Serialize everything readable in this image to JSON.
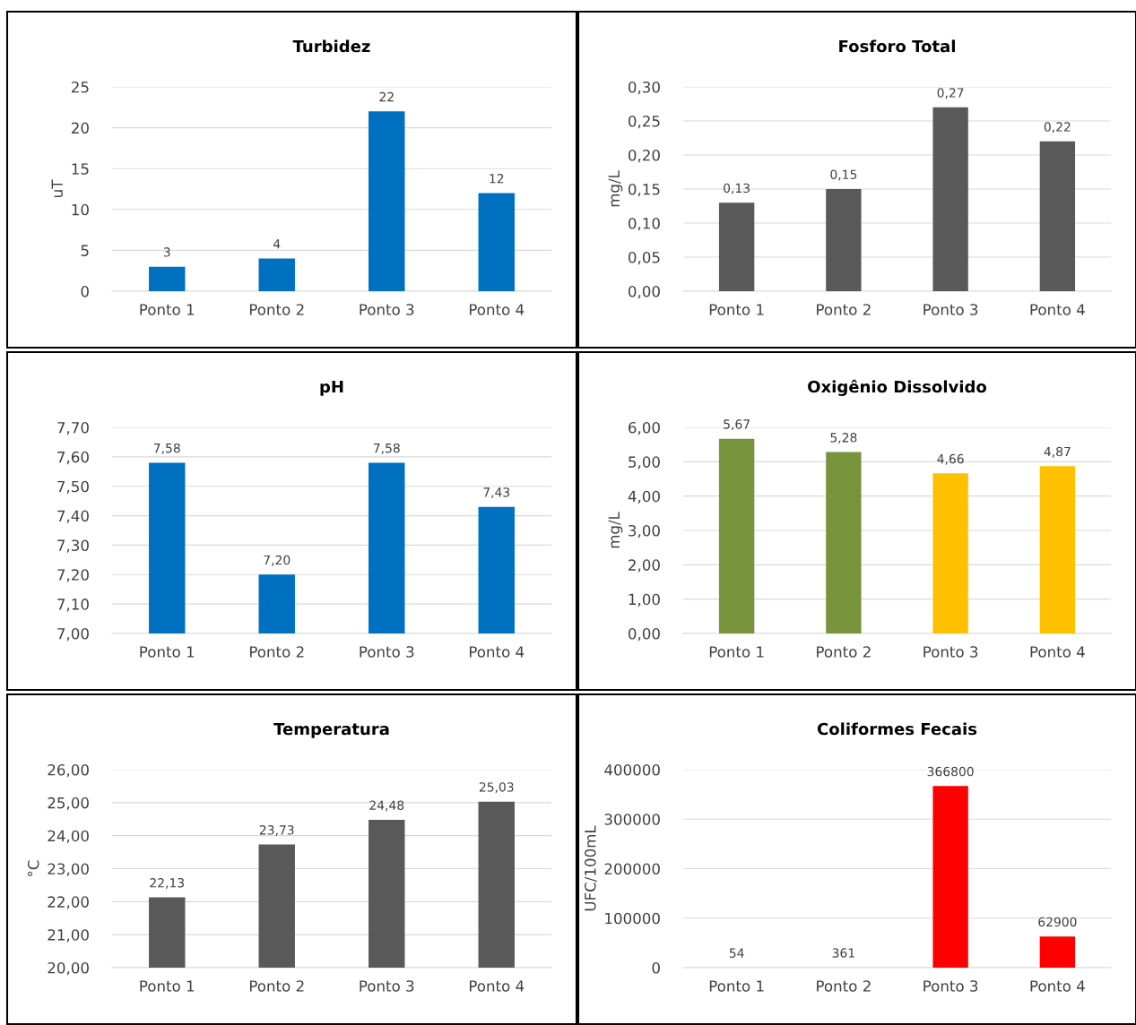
{
  "chart_data": [
    {
      "type": "bar",
      "title": "Turbidez",
      "ylabel": "uT",
      "categories": [
        "Ponto 1",
        "Ponto 2",
        "Ponto 3",
        "Ponto 4"
      ],
      "values": [
        3,
        4,
        22,
        12
      ],
      "color": "#0070c0",
      "ylim": [
        0,
        25
      ],
      "yticks": [
        0,
        5,
        10,
        15,
        20,
        25
      ],
      "grid": "y",
      "data_labels": true
    },
    {
      "type": "bar",
      "title": "Fosforo Total",
      "ylabel": "mg/L",
      "categories": [
        "Ponto 1",
        "Ponto 2",
        "Ponto 3",
        "Ponto 4"
      ],
      "values": [
        0.13,
        0.15,
        0.27,
        0.22
      ],
      "value_labels": [
        "0,13",
        "0,15",
        "0,27",
        "0,22"
      ],
      "color": "#595959",
      "ylim": [
        0,
        0.3
      ],
      "yticks": [
        {
          "value": 0,
          "label": "0,00"
        },
        {
          "value": 0.05,
          "label": "0,05"
        },
        {
          "value": 0.1,
          "label": "0,10"
        },
        {
          "value": 0.15,
          "label": "0,15"
        },
        {
          "value": 0.2,
          "label": "0,20"
        },
        {
          "value": 0.25,
          "label": "0,25"
        },
        {
          "value": 0.3,
          "label": "0,30"
        }
      ],
      "grid": "y"
    },
    {
      "type": "bar",
      "title": "pH",
      "categories": [
        "Ponto 1",
        "Ponto 2",
        "Ponto 3",
        "Ponto 4"
      ],
      "values": [
        7.58,
        7.2,
        7.58,
        7.43
      ],
      "value_labels": [
        "7,58",
        "7,20",
        "7,58",
        "7,43"
      ],
      "color": "#0070c0",
      "ylim": [
        7.0,
        7.7
      ],
      "yticks": [
        {
          "value": 7.0,
          "label": "7,00"
        },
        {
          "value": 7.1,
          "label": "7,10"
        },
        {
          "value": 7.2,
          "label": "7,20"
        },
        {
          "value": 7.3,
          "label": "7,30"
        },
        {
          "value": 7.4,
          "label": "7,40"
        },
        {
          "value": 7.5,
          "label": "7,50"
        },
        {
          "value": 7.6,
          "label": "7,60"
        },
        {
          "value": 7.7,
          "label": "7,70"
        }
      ],
      "grid": "y"
    },
    {
      "type": "bar",
      "title": "Oxigênio Dissolvido",
      "ylabel": "mg/L",
      "categories": [
        "Ponto 1",
        "Ponto 2",
        "Ponto 3",
        "Ponto 4"
      ],
      "values": [
        5.67,
        5.28,
        4.66,
        4.87
      ],
      "value_labels": [
        "5,67",
        "5,28",
        "4,66",
        "4,87"
      ],
      "colors": [
        "#77933c",
        "#77933c",
        "#ffc000",
        "#ffc000"
      ],
      "ylim": [
        0,
        6
      ],
      "yticks": [
        {
          "value": 0,
          "label": "0,00"
        },
        {
          "value": 1,
          "label": "1,00"
        },
        {
          "value": 2,
          "label": "2,00"
        },
        {
          "value": 3,
          "label": "3,00"
        },
        {
          "value": 4,
          "label": "4,00"
        },
        {
          "value": 5,
          "label": "5,00"
        },
        {
          "value": 6,
          "label": "6,00"
        }
      ],
      "grid": "y"
    },
    {
      "type": "bar",
      "title": "Temperatura",
      "ylabel": "°C",
      "categories": [
        "Ponto 1",
        "Ponto 2",
        "Ponto 3",
        "Ponto 4"
      ],
      "values": [
        22.13,
        23.73,
        24.48,
        25.03
      ],
      "value_labels": [
        "22,13",
        "23,73",
        "24,48",
        "25,03"
      ],
      "color": "#595959",
      "ylim": [
        20,
        26
      ],
      "yticks": [
        {
          "value": 20,
          "label": "20,00"
        },
        {
          "value": 21,
          "label": "21,00"
        },
        {
          "value": 22,
          "label": "22,00"
        },
        {
          "value": 23,
          "label": "23,00"
        },
        {
          "value": 24,
          "label": "24,00"
        },
        {
          "value": 25,
          "label": "25,00"
        },
        {
          "value": 26,
          "label": "26,00"
        }
      ],
      "grid": "y"
    },
    {
      "type": "bar",
      "title": "Coliformes Fecais",
      "ylabel": "UFC/100mL",
      "categories": [
        "Ponto 1",
        "Ponto 2",
        "Ponto 3",
        "Ponto 4"
      ],
      "values": [
        54,
        361,
        366800,
        62900
      ],
      "colors": [
        "#9dc3e6",
        "#c5e0b4",
        "#ff0000",
        "#ff0000"
      ],
      "ylim": [
        0,
        400000
      ],
      "yticks": [
        0,
        100000,
        200000,
        300000,
        400000
      ],
      "grid": "y",
      "data_labels": true
    }
  ]
}
